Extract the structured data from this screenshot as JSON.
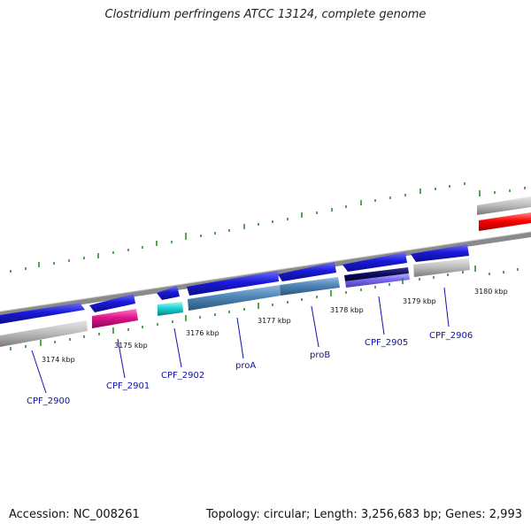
{
  "title": "Clostridium perfringens ATCC 13124, complete genome",
  "footer": {
    "accession": "Accession: NC_008261",
    "summary": "Topology: circular; Length: 3,256,683 bp; Genes: 2,993"
  },
  "colors": {
    "forward_cds": "#1a1adb",
    "backbone": "#8a8a8a",
    "tick": "#2e8b2e",
    "label": "#1010b0",
    "rna": "#ff0000",
    "pink": "#e0138c",
    "cyan": "#19d3d3",
    "steel": "#4f86b8",
    "gray": "#b9b9b9",
    "navy": "#0a0a5a",
    "purple": "#7b68ee"
  },
  "kbp_labels": [
    "3174 kbp",
    "3175 kbp",
    "3176 kbp",
    "3177 kbp",
    "3178 kbp",
    "3179 kbp",
    "3180 kbp"
  ],
  "genes": [
    "CPF_2900",
    "CPF_2901",
    "CPF_2902",
    "proA",
    "proB",
    "CPF_2905",
    "CPF_2906"
  ]
}
